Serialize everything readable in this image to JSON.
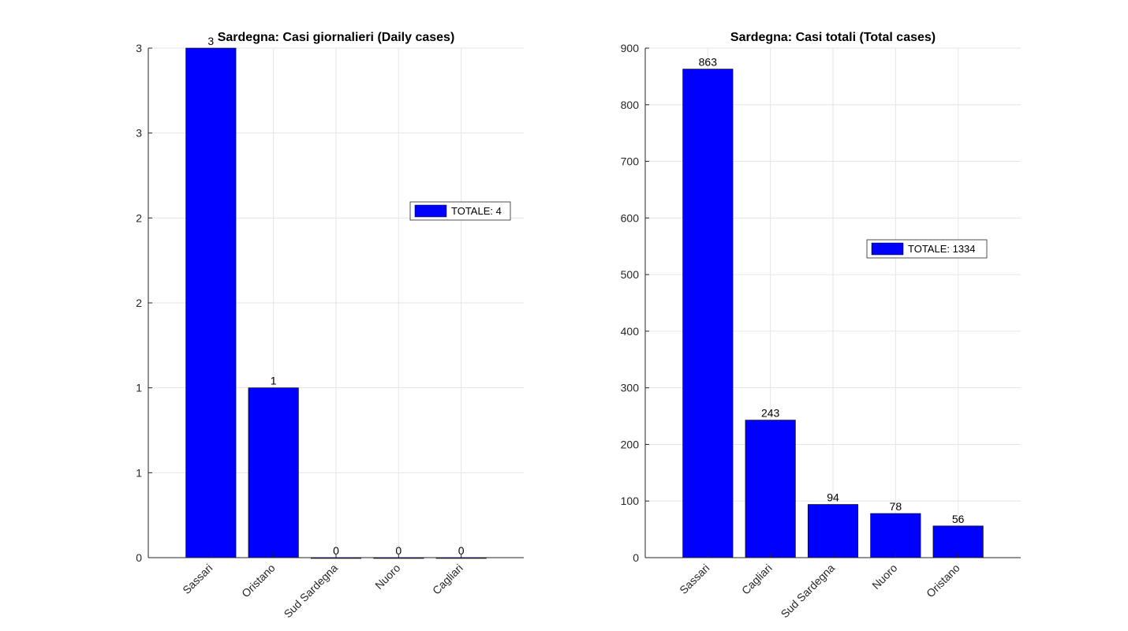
{
  "chart_data": [
    {
      "type": "bar",
      "title": "Sardegna: Casi giornalieri (Daily cases)",
      "xlabel": "",
      "ylabel": "",
      "categories": [
        "Sassari",
        "Oristano",
        "Sud Sardegna",
        "Nuoro",
        "Cagliari"
      ],
      "values": [
        3,
        1,
        0,
        0,
        0
      ],
      "data_labels": [
        "3",
        "1",
        "0",
        "0",
        "0"
      ],
      "ylim": [
        0,
        3
      ],
      "yticks": [
        0,
        0.5,
        1,
        1.5,
        2,
        2.5,
        3
      ],
      "ytick_labels": [
        "0",
        "1",
        "1",
        "2",
        "2",
        "3",
        "3"
      ],
      "xlim": [
        0,
        6
      ],
      "grid": true,
      "bar_color": "#0000FF",
      "legend": {
        "label": "TOTALE: 4",
        "placement": "right"
      }
    },
    {
      "type": "bar",
      "title": "Sardegna: Casi totali (Total cases)",
      "xlabel": "",
      "ylabel": "",
      "categories": [
        "Sassari",
        "Cagliari",
        "Sud Sardegna",
        "Nuoro",
        "Oristano"
      ],
      "values": [
        863,
        243,
        94,
        78,
        56
      ],
      "data_labels": [
        "863",
        "243",
        "94",
        "78",
        "56"
      ],
      "ylim": [
        0,
        900
      ],
      "yticks": [
        0,
        100,
        200,
        300,
        400,
        500,
        600,
        700,
        800,
        900
      ],
      "ytick_labels": [
        "0",
        "100",
        "200",
        "300",
        "400",
        "500",
        "600",
        "700",
        "800",
        "900"
      ],
      "xlim": [
        0,
        6
      ],
      "grid": true,
      "bar_color": "#0000FF",
      "legend": {
        "label": "TOTALE: 1334",
        "placement": "right"
      }
    }
  ]
}
